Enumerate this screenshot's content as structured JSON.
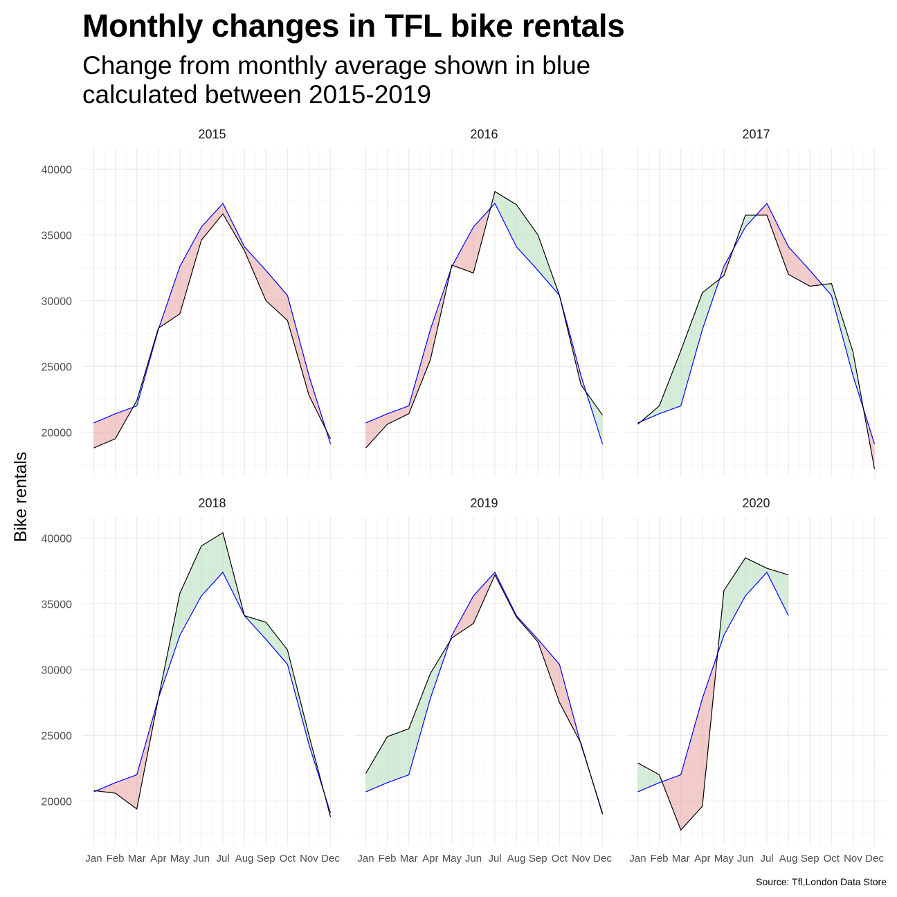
{
  "chart_data": {
    "type": "line",
    "title": "Monthly changes in TFL bike rentals",
    "subtitle_lines": [
      "Change from monthly average shown in blue",
      "calculated between 2015-2019"
    ],
    "ylabel": "Bike rentals",
    "xlabel": "",
    "caption": "Source: Tfl,London Data Store",
    "categories": [
      "Jan",
      "Feb",
      "Mar",
      "Apr",
      "May",
      "Jun",
      "Jul",
      "Aug",
      "Sep",
      "Oct",
      "Nov",
      "Dec"
    ],
    "ylim": [
      16600,
      41600
    ],
    "yticks": [
      20000,
      25000,
      30000,
      35000,
      40000
    ],
    "grid": true,
    "colors": {
      "average": "#0000ff",
      "actual": "#000000",
      "above_fill": "#b2dfb8",
      "below_fill": "#e8a0a0",
      "grid_major": "#ebebeb",
      "grid_minor": "#f5f5f5"
    },
    "monthly_average": [
      20700,
      21400,
      22000,
      27800,
      32600,
      35600,
      37400,
      34100,
      32300,
      30400,
      24300,
      19100
    ],
    "panels": [
      {
        "year": "2015",
        "values": [
          18800,
          19500,
          22400,
          27900,
          29000,
          34600,
          36600,
          33800,
          30000,
          28500,
          22800,
          19500
        ]
      },
      {
        "year": "2016",
        "values": [
          18800,
          20600,
          21400,
          25500,
          32700,
          32100,
          38300,
          37300,
          35000,
          30400,
          23600,
          21300
        ]
      },
      {
        "year": "2017",
        "values": [
          20600,
          22000,
          26200,
          30600,
          31900,
          36500,
          36500,
          32000,
          31100,
          31300,
          26100,
          17200
        ]
      },
      {
        "year": "2018",
        "values": [
          20800,
          20600,
          19400,
          27800,
          35800,
          39400,
          40400,
          34100,
          33600,
          31500,
          25000,
          18800
        ]
      },
      {
        "year": "2019",
        "values": [
          22100,
          24900,
          25500,
          29700,
          32400,
          33500,
          37200,
          34000,
          32100,
          27500,
          24400,
          19000
        ]
      },
      {
        "year": "2020",
        "values": [
          22900,
          22000,
          17800,
          19600,
          36000,
          38500,
          37700,
          37200,
          null,
          null,
          null,
          null
        ]
      }
    ]
  }
}
